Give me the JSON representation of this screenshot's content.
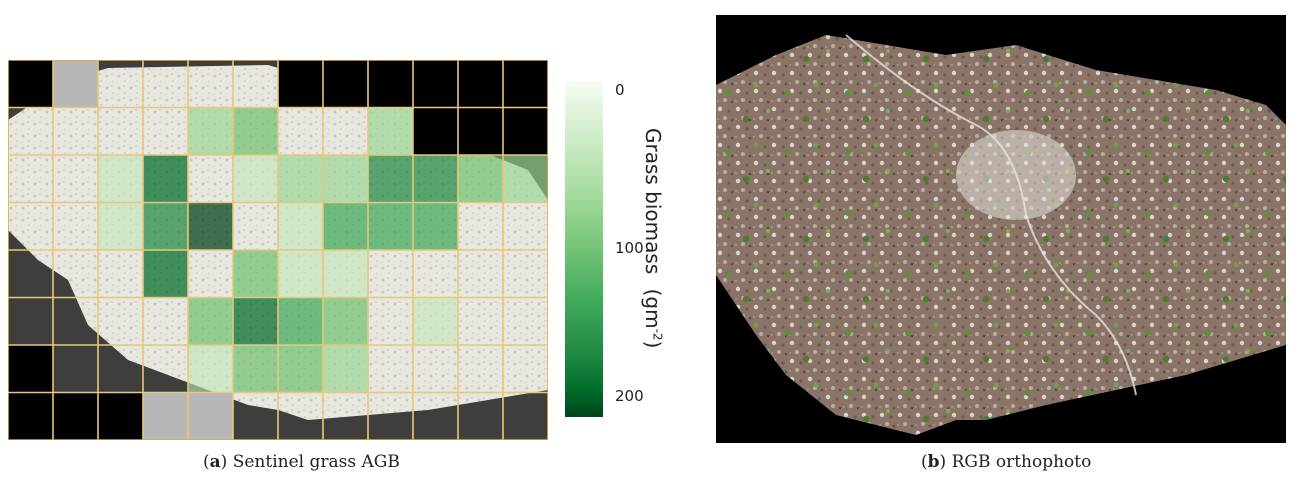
{
  "panel_a": {
    "caption_letter": "a",
    "caption_text": " Sentinel grass AGB",
    "colorbar": {
      "label": "Grass biomass",
      "unit": "(gm",
      "unit_exp": "-2",
      "unit_close": ")",
      "ticks": [
        "0",
        "100",
        "200"
      ],
      "colors": [
        "#f7fcf5",
        "#c7e9c0",
        "#a1d99b",
        "#74c476",
        "#41ab5d",
        "#238b45",
        "#006d2c",
        "#00441b"
      ]
    },
    "grid_colors": {
      "cell_line": "#e8c77a",
      "outer_line": "#e6a844",
      "empty": "#000000",
      "no_data": "#b7b7b7",
      "background_image": "#e6e4dc"
    }
  },
  "panel_b": {
    "caption_letter": "b",
    "caption_text": " RGB orthophoto"
  }
}
